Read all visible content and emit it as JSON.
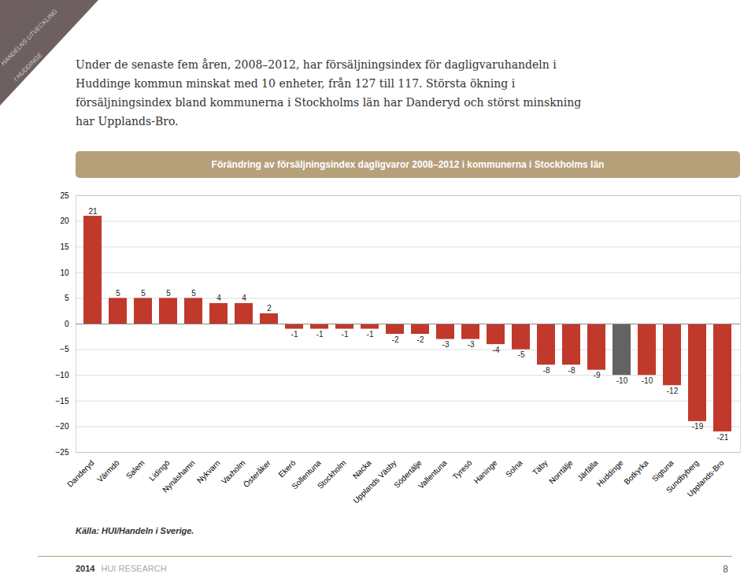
{
  "chart_data": {
    "type": "bar",
    "title": "Förändring av försäljningsindex dagligvaror 2008–2012 i kommunerna i Stockholms län",
    "categories": [
      "Danderyd",
      "Värmdö",
      "Salem",
      "Lidingö",
      "Nynäshamn",
      "Nykvarn",
      "Vaxholm",
      "Österåker",
      "Ekerö",
      "Sollentuna",
      "Stockholm",
      "Nacka",
      "Upplands Väsby",
      "Södertälje",
      "Vallentuna",
      "Tyresö",
      "Haninge",
      "Solna",
      "Täby",
      "Norrtälje",
      "Järfälla",
      "Huddinge",
      "Botkyrka",
      "Sigtuna",
      "Sundbyberg",
      "Upplands-Bro"
    ],
    "values": [
      21,
      5,
      5,
      5,
      5,
      4,
      4,
      2,
      -1,
      -1,
      -1,
      -1,
      -2,
      -2,
      -3,
      -3,
      -4,
      -5,
      -8,
      -8,
      -9,
      -10,
      -10,
      -12,
      -19,
      -21
    ],
    "colors": [
      "#c0392b",
      "#c0392b",
      "#c0392b",
      "#c0392b",
      "#c0392b",
      "#c0392b",
      "#c0392b",
      "#c0392b",
      "#c0392b",
      "#c0392b",
      "#c0392b",
      "#c0392b",
      "#c0392b",
      "#c0392b",
      "#c0392b",
      "#c0392b",
      "#c0392b",
      "#c0392b",
      "#c0392b",
      "#c0392b",
      "#c0392b",
      "#636363",
      "#c0392b",
      "#c0392b",
      "#c0392b",
      "#c0392b"
    ],
    "ylim": [
      -25,
      25
    ],
    "yticks": [
      -25,
      -20,
      -15,
      -10,
      -5,
      0,
      5,
      10,
      15,
      20,
      25
    ],
    "grid": true,
    "data_labels": true,
    "annotations": [
      "HANDELNS UTVECKLING",
      "I HUDDINGE",
      "Under de senaste fem åren, 2008–2012, har försäljningsindex för dagligvaruhandeln i",
      "Huddinge kommun minskat med 10 enheter, från 127 till 117. Största ökning i",
      "försäljningsindex bland kommunerna i Stockholms län har Danderyd och störst minskning",
      "har Upplands-Bro.",
      "Källa: HUI/Handeln i Sverige.",
      "2014",
      "HUI RESEARCH",
      "8"
    ]
  }
}
